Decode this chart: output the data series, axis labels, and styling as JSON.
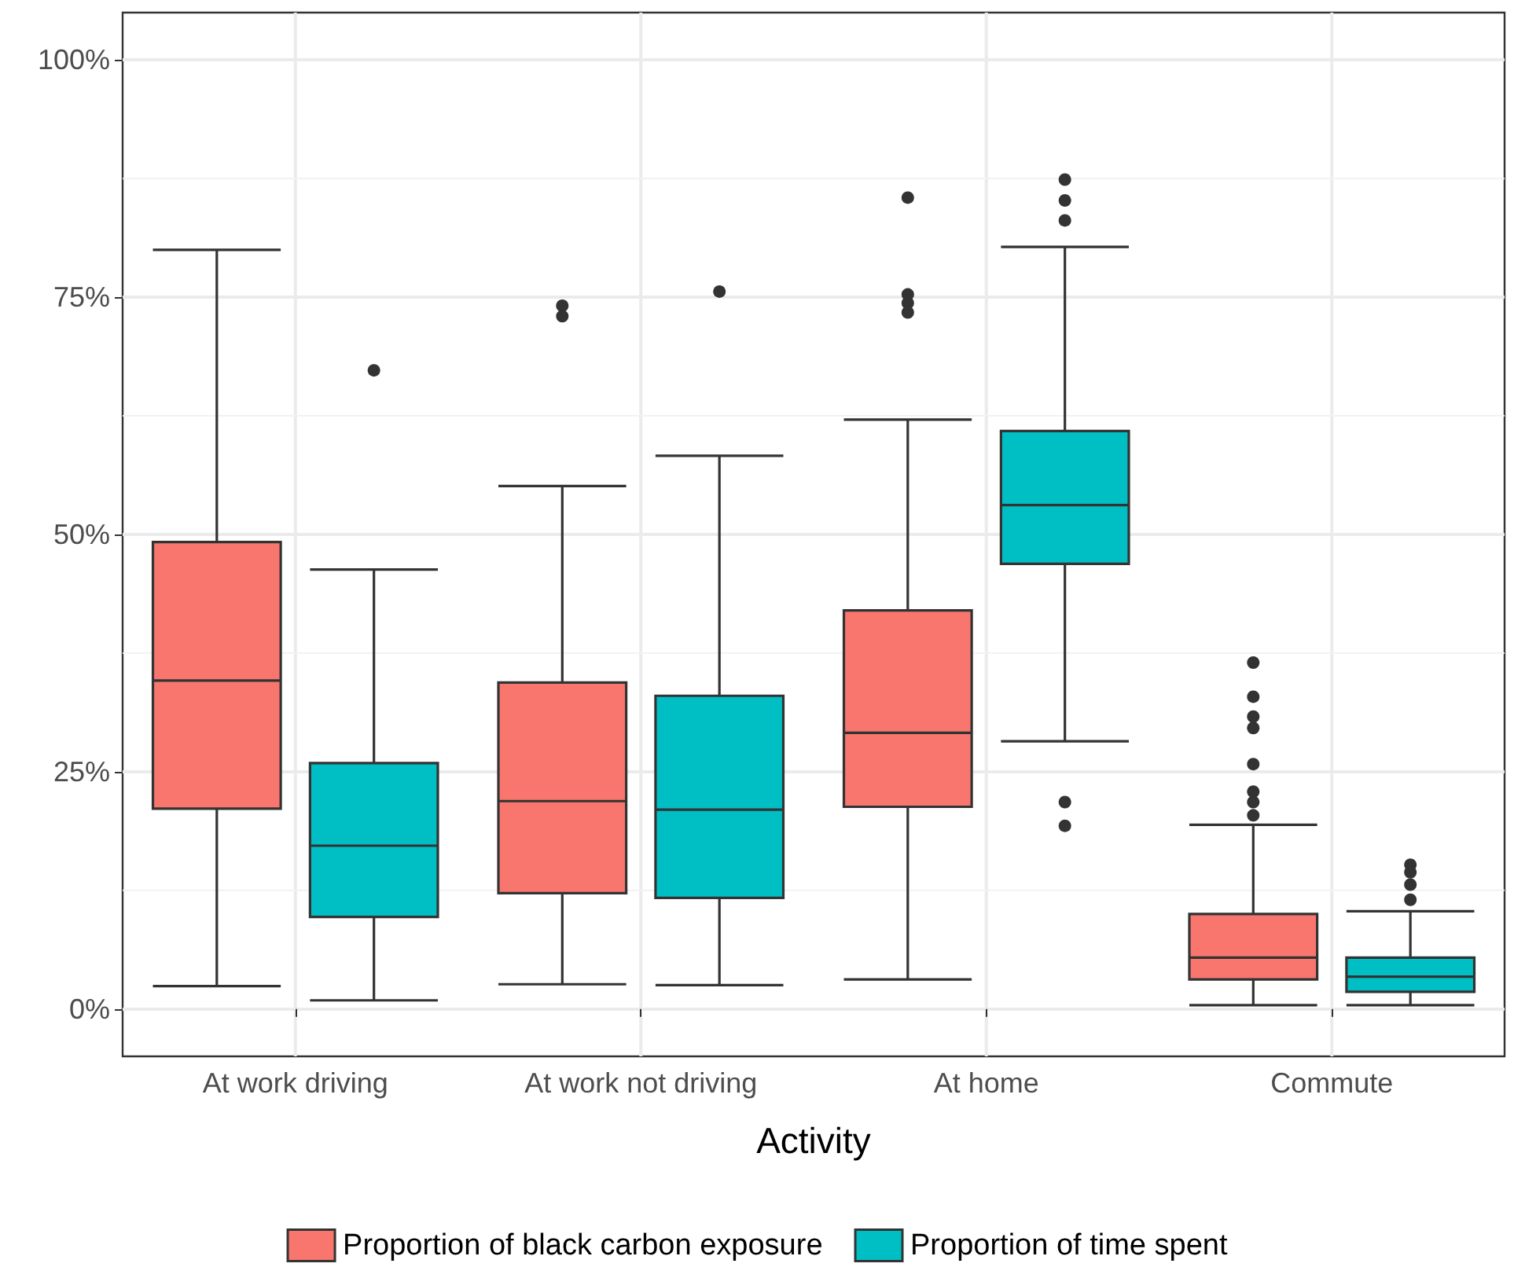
{
  "chart_data": {
    "type": "box",
    "xlabel": "Activity",
    "categories": [
      "At work driving",
      "At work not driving",
      "At home",
      "Commute"
    ],
    "series": [
      {
        "name": "Proportion of black carbon exposure",
        "color": "#f8766d",
        "boxes": [
          {
            "low": 2.4,
            "q1": 21.1,
            "median": 34.6,
            "q3": 49.2,
            "high": 80
          },
          {
            "low": 2.6,
            "q1": 12.2,
            "median": 21.9,
            "q3": 34.4,
            "high": 55.1,
            "outliers": [
              74.1,
              73.0
            ]
          },
          {
            "low": 3.1,
            "q1": 21.3,
            "median": 29.1,
            "q3": 42.0,
            "high": 62.1,
            "outliers": [
              85.5,
              75.3,
              74.4,
              73.4
            ]
          },
          {
            "low": 0.4,
            "q1": 3.1,
            "median": 5.4,
            "q3": 10.0,
            "high": 19.4,
            "outliers": [
              36.5,
              32.9,
              30.8,
              29.6,
              25.8,
              22.9,
              21.8,
              20.4
            ]
          }
        ]
      },
      {
        "name": "Proportion of time spent",
        "color": "#00bfc4",
        "boxes": [
          {
            "low": 0.9,
            "q1": 9.7,
            "median": 17.2,
            "q3": 25.9,
            "high": 46.3,
            "outliers": [
              67.3
            ]
          },
          {
            "low": 2.5,
            "q1": 11.7,
            "median": 21.0,
            "q3": 33.0,
            "high": 58.3,
            "outliers": [
              75.6
            ]
          },
          {
            "low": 28.2,
            "q1": 46.9,
            "median": 53.1,
            "q3": 60.9,
            "high": 80.3,
            "outliers": [
              87.4,
              85.2,
              83.1,
              21.8,
              19.3
            ]
          },
          {
            "low": 0.4,
            "q1": 1.8,
            "median": 3.4,
            "q3": 5.4,
            "high": 10.3,
            "outliers": [
              15.2,
              14.4,
              13.1,
              11.5
            ]
          }
        ]
      }
    ],
    "ylim": [
      -5,
      105
    ],
    "yticks": [
      {
        "value": 0,
        "label": "0%"
      },
      {
        "value": 25,
        "label": "25%"
      },
      {
        "value": 50,
        "label": "50%"
      },
      {
        "value": 75,
        "label": "75%"
      },
      {
        "value": 100,
        "label": "100%"
      }
    ],
    "grid": true,
    "legend": "bottom"
  }
}
